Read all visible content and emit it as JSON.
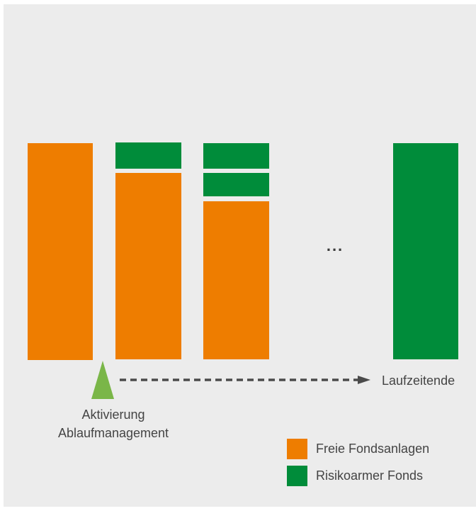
{
  "colors": {
    "free_funds": "#EE7D00",
    "low_risk": "#008C3A",
    "trigger": "#7AB648",
    "arrow": "#4A4A4A",
    "background": "#ECECEC"
  },
  "ellipsis": "...",
  "end_label": "Laufzeitende",
  "trigger_label": {
    "line1": "Aktivierung",
    "line2": "Ablaufmanagement"
  },
  "legend": [
    {
      "label": "Freie Fondsanlagen",
      "color": "#EE7D00"
    },
    {
      "label": "Risikoarmer Fonds",
      "color": "#008C3A"
    }
  ]
}
